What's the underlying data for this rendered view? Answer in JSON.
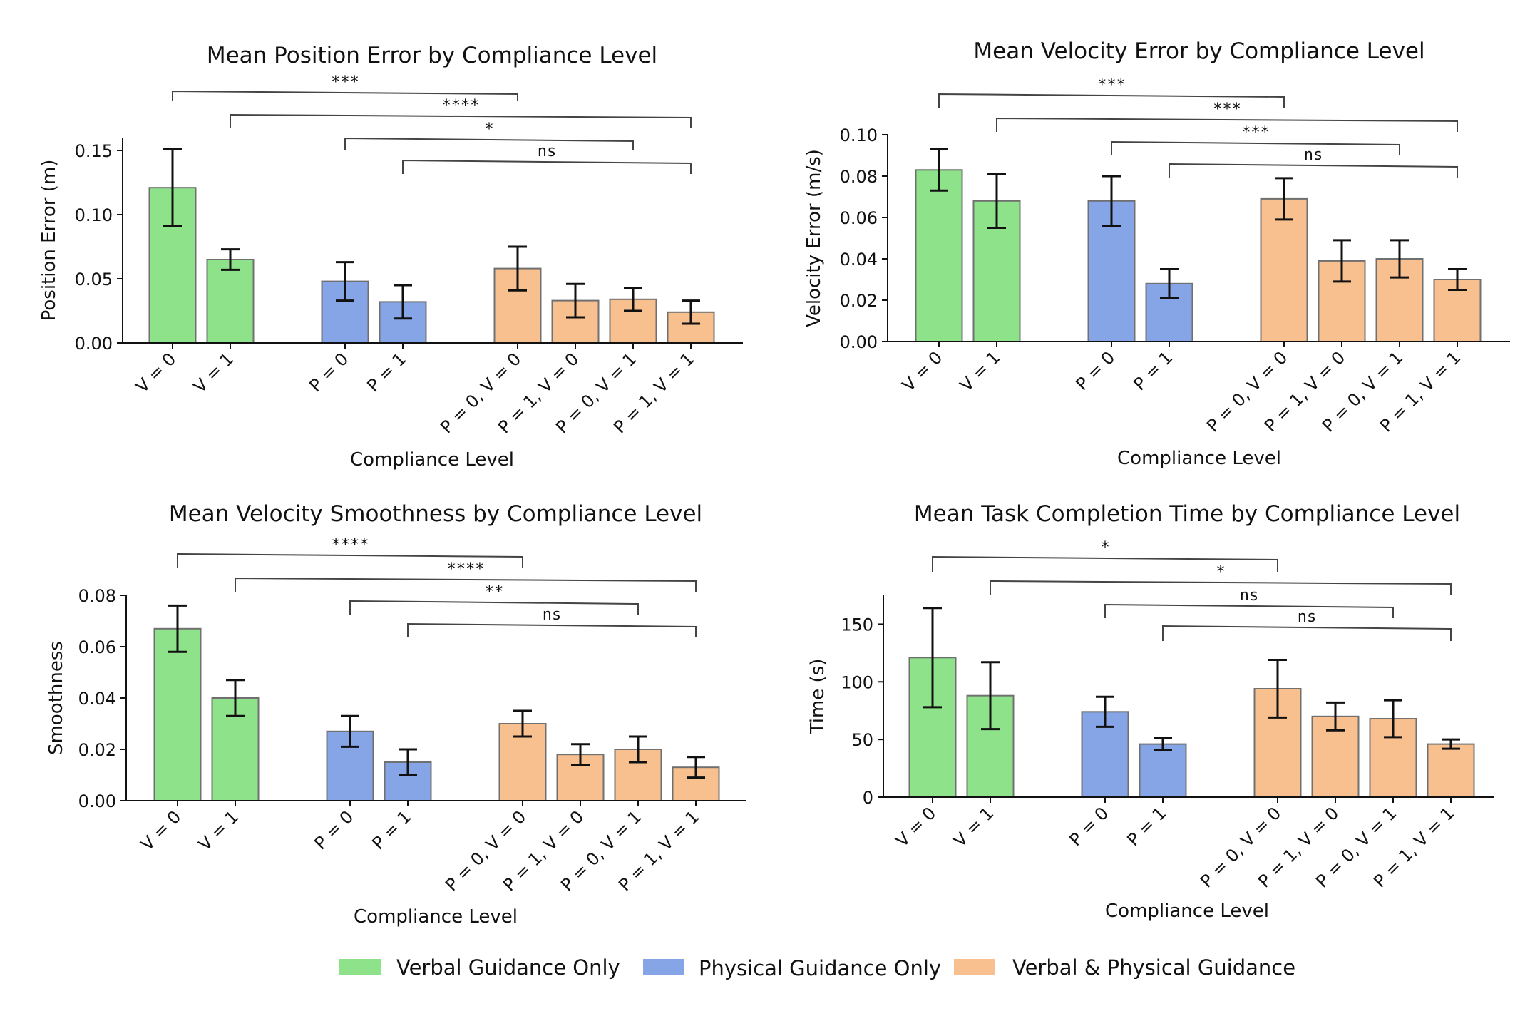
{
  "legend": [
    {
      "label": "Verbal Guidance Only",
      "color": "#8ee38a"
    },
    {
      "label": "Physical Guidance Only",
      "color": "#86a5e6"
    },
    {
      "label": "Verbal & Physical Guidance",
      "color": "#f8c08e"
    }
  ],
  "chart_data": [
    {
      "type": "bar",
      "title": "Mean Position Error by Compliance Level",
      "xlabel": "Compliance Level",
      "ylabel": "Position Error (m)",
      "ylim": [
        0,
        0.16
      ],
      "yticks": [
        0.0,
        0.05,
        0.1,
        0.15
      ],
      "ytick_labels": [
        "0.00",
        "0.05",
        "0.10",
        "0.15"
      ],
      "categories": [
        "V = 0",
        "V = 1",
        "P = 0",
        "P = 1",
        "P = 0, V = 0",
        "P = 1, V = 0",
        "P = 0, V = 1",
        "P = 1, V = 1"
      ],
      "groups": [
        0,
        0,
        1,
        1,
        2,
        2,
        2,
        2
      ],
      "values": [
        0.121,
        0.065,
        0.048,
        0.032,
        0.058,
        0.033,
        0.034,
        0.024
      ],
      "errors": [
        0.03,
        0.008,
        0.015,
        0.013,
        0.017,
        0.013,
        0.009,
        0.009
      ],
      "significance": [
        {
          "from": 0,
          "to": 4,
          "label": "***"
        },
        {
          "from": 1,
          "to": 7,
          "label": "****"
        },
        {
          "from": 2,
          "to": 6,
          "label": "*"
        },
        {
          "from": 3,
          "to": 7,
          "label": "ns"
        }
      ]
    },
    {
      "type": "bar",
      "title": "Mean Velocity Error by Compliance Level",
      "xlabel": "Compliance Level",
      "ylabel": "Velocity Error (m/s)",
      "ylim": [
        0,
        0.1
      ],
      "yticks": [
        0.0,
        0.02,
        0.04,
        0.06,
        0.08,
        0.1
      ],
      "ytick_labels": [
        "0.00",
        "0.02",
        "0.04",
        "0.06",
        "0.08",
        "0.10"
      ],
      "categories": [
        "V = 0",
        "V = 1",
        "P = 0",
        "P = 1",
        "P = 0, V = 0",
        "P = 1, V = 0",
        "P = 0, V = 1",
        "P = 1, V = 1"
      ],
      "groups": [
        0,
        0,
        1,
        1,
        2,
        2,
        2,
        2
      ],
      "values": [
        0.083,
        0.068,
        0.068,
        0.028,
        0.069,
        0.039,
        0.04,
        0.03
      ],
      "errors": [
        0.01,
        0.013,
        0.012,
        0.007,
        0.01,
        0.01,
        0.009,
        0.005
      ],
      "significance": [
        {
          "from": 0,
          "to": 4,
          "label": "***"
        },
        {
          "from": 1,
          "to": 7,
          "label": "***"
        },
        {
          "from": 2,
          "to": 6,
          "label": "***"
        },
        {
          "from": 3,
          "to": 7,
          "label": "ns"
        }
      ]
    },
    {
      "type": "bar",
      "title": "Mean Velocity Smoothness by Compliance Level",
      "xlabel": "Compliance Level",
      "ylabel": "Smoothness",
      "ylim": [
        0,
        0.08
      ],
      "yticks": [
        0.0,
        0.02,
        0.04,
        0.06,
        0.08
      ],
      "ytick_labels": [
        "0.00",
        "0.02",
        "0.04",
        "0.06",
        "0.08"
      ],
      "categories": [
        "V = 0",
        "V = 1",
        "P = 0",
        "P = 1",
        "P = 0, V = 0",
        "P = 1, V = 0",
        "P = 0, V = 1",
        "P = 1, V = 1"
      ],
      "groups": [
        0,
        0,
        1,
        1,
        2,
        2,
        2,
        2
      ],
      "values": [
        0.067,
        0.04,
        0.027,
        0.015,
        0.03,
        0.018,
        0.02,
        0.013
      ],
      "errors": [
        0.009,
        0.007,
        0.006,
        0.005,
        0.005,
        0.004,
        0.005,
        0.004
      ],
      "significance": [
        {
          "from": 0,
          "to": 4,
          "label": "****"
        },
        {
          "from": 1,
          "to": 7,
          "label": "****"
        },
        {
          "from": 2,
          "to": 6,
          "label": "**"
        },
        {
          "from": 3,
          "to": 7,
          "label": "ns"
        }
      ]
    },
    {
      "type": "bar",
      "title": "Mean Task Completion Time by Compliance Level",
      "xlabel": "Compliance Level",
      "ylabel": "Time (s)",
      "ylim": [
        0,
        175
      ],
      "yticks": [
        0,
        50,
        100,
        150
      ],
      "ytick_labels": [
        "0",
        "50",
        "100",
        "150"
      ],
      "categories": [
        "V = 0",
        "V = 1",
        "P = 0",
        "P = 1",
        "P = 0, V = 0",
        "P = 1, V = 0",
        "P = 0, V = 1",
        "P = 1, V = 1"
      ],
      "groups": [
        0,
        0,
        1,
        1,
        2,
        2,
        2,
        2
      ],
      "values": [
        121,
        88,
        74,
        46,
        94,
        70,
        68,
        46
      ],
      "errors": [
        43,
        29,
        13,
        5,
        25,
        12,
        16,
        4
      ],
      "significance": [
        {
          "from": 0,
          "to": 4,
          "label": "*"
        },
        {
          "from": 1,
          "to": 7,
          "label": "*"
        },
        {
          "from": 2,
          "to": 6,
          "label": "ns"
        },
        {
          "from": 3,
          "to": 7,
          "label": "ns"
        }
      ]
    }
  ]
}
